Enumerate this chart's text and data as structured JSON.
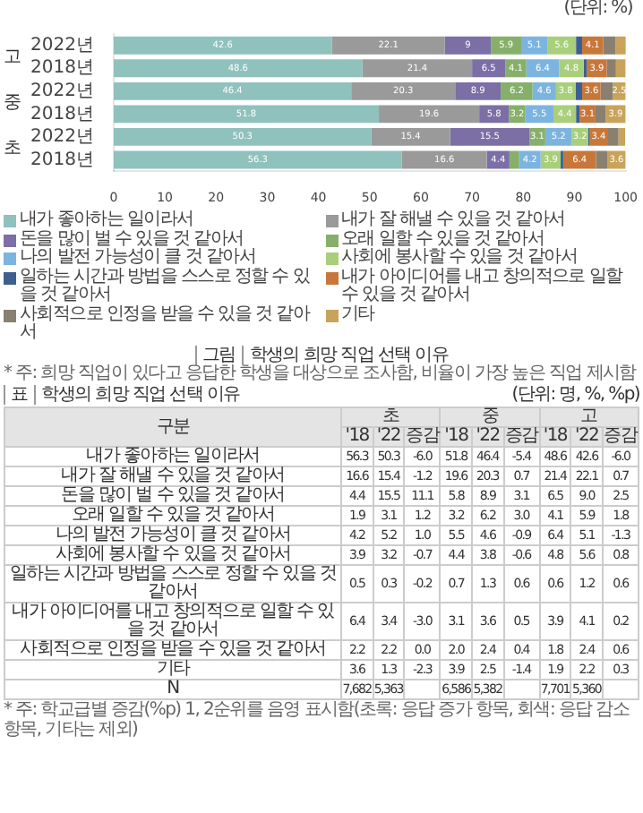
{
  "chart_data": [
    {
      "type": "bar",
      "orientation": "horizontal",
      "stacked": true,
      "title": "학생의 희망 직업 선택 이유",
      "categories": [
        "2022년",
        "2018년",
        "2022년",
        "2018년",
        "2022년",
        "2018년"
      ],
      "series": [
        {
          "name": "내가 좋아하는 일이라서",
          "color": "#8fc1bd",
          "values": [
            42.6,
            48.6,
            46.4,
            51.8,
            50.3,
            56.3
          ],
          "value_labels": [
            "42.6",
            "48.6",
            "46.4",
            "51.8",
            "50.3",
            "56.3"
          ]
        },
        {
          "name": "내가 잘 해낼 수 있을 것 같아서",
          "color": "#9a9a9a",
          "values": [
            22.1,
            21.4,
            20.3,
            19.6,
            15.4,
            16.6
          ],
          "value_labels": [
            "22.1",
            "21.4",
            "20.3",
            "19.6",
            "15.4",
            "16.6"
          ]
        },
        {
          "name": "돈을 많이 벌 수 있을 것 같아서",
          "color": "#7b6fa6",
          "values": [
            9,
            6.5,
            8.9,
            5.8,
            15.5,
            4.4
          ],
          "value_labels": [
            "9",
            "6.5",
            "8.9",
            "5.8",
            "15.5",
            "4.4"
          ]
        },
        {
          "name": "오래 일할 수 있을 것 같아서",
          "color": "#86b06a",
          "values": [
            5.9,
            4.1,
            6.2,
            3.2,
            3.1,
            1.9
          ],
          "value_labels": [
            "5.9",
            "4.1",
            "6.2",
            "3.2",
            "3.1",
            null
          ]
        },
        {
          "name": "나의 발전 가능성이 클 것 같아서",
          "color": "#7cb4e0",
          "values": [
            5.1,
            6.4,
            4.6,
            5.5,
            5.2,
            4.2
          ],
          "value_labels": [
            "5.1",
            "6.4",
            "4.6",
            "5.5",
            "5.2",
            "4.2"
          ]
        },
        {
          "name": "사회에 봉사할 수 있을 것 같아서",
          "color": "#a9cf7a",
          "values": [
            5.6,
            4.8,
            3.8,
            4.4,
            3.2,
            3.9
          ],
          "value_labels": [
            "5.6",
            "4.8",
            "3.8",
            "4.4",
            "3.2",
            "3.9"
          ]
        },
        {
          "name": "일하는 시간과 방법을 스스로 정할 수 있을 것 같아서",
          "color": "#3d5f8f",
          "values": [
            1.2,
            0.6,
            1.3,
            0.7,
            0.3,
            0.5
          ]
        },
        {
          "name": "내가 아이디어를 내고 창의적으로 일할 수 있을 것 같아서",
          "color": "#c8773a",
          "values": [
            4.1,
            3.9,
            3.6,
            3.1,
            3.4,
            6.4
          ],
          "value_labels": [
            "4.1",
            "3.9",
            "3.6",
            "3.1",
            "3.4",
            "6.4"
          ]
        },
        {
          "name": "사회적으로 인정을 받을 수 있을 것 같아서",
          "color": "#8a8070",
          "values": [
            2.4,
            1.8,
            2.4,
            2,
            2.2,
            2.2
          ]
        },
        {
          "name": "기타",
          "color": "#c9a35a",
          "values": [
            2.2,
            1.9,
            2.5,
            3.9,
            1.3,
            3.6
          ],
          "value_labels": [
            null,
            null,
            "2.5",
            "3.9",
            null,
            "3.6"
          ]
        }
      ],
      "xlim": [
        0,
        100
      ],
      "xticks": [
        0,
        10,
        20,
        30,
        40,
        50,
        60,
        70,
        80,
        90,
        100
      ],
      "legend": "bottom",
      "annotations": [
        "(단위: %)",
        "고",
        "중",
        "초",
        "그림",
        "* 주: 희망 직업이 있다고 응답한 학생을 대상으로 조사함, 비율이 가장 높은 직업 제시함"
      ]
    },
    {
      "type": "other",
      "title": "학생의 희망 직업 선택 이유",
      "categories": [
        "내가 좋아하는 일이라서",
        "내가 잘 해낼 수 있을 것 같아서",
        "돈을 많이 벌 수 있을 것 같아서",
        "오래 일할 수 있을 것 같아서",
        "나의 발전 가능성이 클 것 같아서",
        "사회에 봉사할 수 있을 것 같아서",
        "일하는 시간과 방법을 스스로 정할 수 있을 것 같아서",
        "내가 아이디어를 내고 창의적으로 일할 수 있을 것 같아서",
        "사회적으로 인정을 받을 수 있을 것 같아서",
        "기타",
        "N"
      ],
      "series": [
        {
          "name": "'18",
          "values": [
            56.3,
            16.6,
            4.4,
            1.9,
            4.2,
            3.9,
            0.5,
            6.4,
            2.2,
            3.6,
            7682
          ],
          "value_labels": [
            "56.3",
            "16.6",
            "4.4",
            "1.9",
            "4.2",
            "3.9",
            "0.5",
            "6.4",
            "2.2",
            "3.6",
            "7,682"
          ]
        },
        {
          "name": "'22",
          "values": [
            50.3,
            15.4,
            15.5,
            3.1,
            5.2,
            3.2,
            0.3,
            3.4,
            2.2,
            1.3,
            5363
          ],
          "value_labels": [
            "50.3",
            "15.4",
            "15.5",
            "3.1",
            "5.2",
            "3.2",
            "0.3",
            "3.4",
            "2.2",
            "1.3",
            "5,363"
          ]
        },
        {
          "name": "증감",
          "values": [
            -6.0,
            -1.2,
            11.1,
            1.2,
            1.0,
            -0.7,
            -0.2,
            -3.0,
            0.0,
            -2.3,
            null
          ],
          "value_labels": [
            "-6.0",
            "-1.2",
            "11.1",
            "1.2",
            "1.0",
            "-0.7",
            "-0.2",
            "-3.0",
            "0.0",
            "-2.3",
            null
          ]
        },
        {
          "name": "'18",
          "values": [
            51.8,
            19.6,
            5.8,
            3.2,
            5.5,
            4.4,
            0.7,
            3.1,
            2.0,
            3.9,
            6586
          ],
          "value_labels": [
            "51.8",
            "19.6",
            "5.8",
            "3.2",
            "5.5",
            "4.4",
            "0.7",
            "3.1",
            "2.0",
            "3.9",
            "6,586"
          ]
        },
        {
          "name": "'22",
          "values": [
            46.4,
            20.3,
            8.9,
            6.2,
            4.6,
            3.8,
            1.3,
            3.6,
            2.4,
            2.5,
            5382
          ],
          "value_labels": [
            "46.4",
            "20.3",
            "8.9",
            "6.2",
            "4.6",
            "3.8",
            "1.3",
            "3.6",
            "2.4",
            "2.5",
            "5,382"
          ]
        },
        {
          "name": "증감",
          "values": [
            -5.4,
            0.7,
            3.1,
            3.0,
            -0.9,
            -0.6,
            0.6,
            0.5,
            0.4,
            -1.4,
            null
          ],
          "value_labels": [
            "-5.4",
            "0.7",
            "3.1",
            "3.0",
            "-0.9",
            "-0.6",
            "0.6",
            "0.5",
            "0.4",
            "-1.4",
            null
          ]
        },
        {
          "name": "'18",
          "values": [
            48.6,
            21.4,
            6.5,
            4.1,
            6.4,
            4.8,
            0.6,
            3.9,
            1.8,
            1.9,
            7701
          ],
          "value_labels": [
            "48.6",
            "21.4",
            "6.5",
            "4.1",
            "6.4",
            "4.8",
            "0.6",
            "3.9",
            "1.8",
            "1.9",
            "7,701"
          ]
        },
        {
          "name": "'22",
          "values": [
            42.6,
            22.1,
            9.0,
            5.9,
            5.1,
            5.6,
            1.2,
            4.1,
            2.4,
            2.2,
            5360
          ],
          "value_labels": [
            "42.6",
            "22.1",
            "9.0",
            "5.9",
            "5.1",
            "5.6",
            "1.2",
            "4.1",
            "2.4",
            "2.2",
            "5,360"
          ]
        },
        {
          "name": "증감",
          "values": [
            -6.0,
            0.7,
            2.5,
            1.8,
            -1.3,
            0.8,
            0.6,
            0.2,
            0.6,
            0.3,
            null
          ],
          "value_labels": [
            "-6.0",
            "0.7",
            "2.5",
            "1.8",
            "-1.3",
            "0.8",
            "0.6",
            "0.2",
            "0.6",
            "0.3",
            null
          ]
        }
      ],
      "annotations": [
        "표",
        "(단위: 명, %, %p)",
        "구분",
        "초",
        "중",
        "고",
        "* 주: 학교급별 증감(%p) 1, 2순위를 음영 표시함(초록: 응답 증가 항목, 회색: 응답 감소 항목, 기타는 제외)"
      ]
    }
  ]
}
